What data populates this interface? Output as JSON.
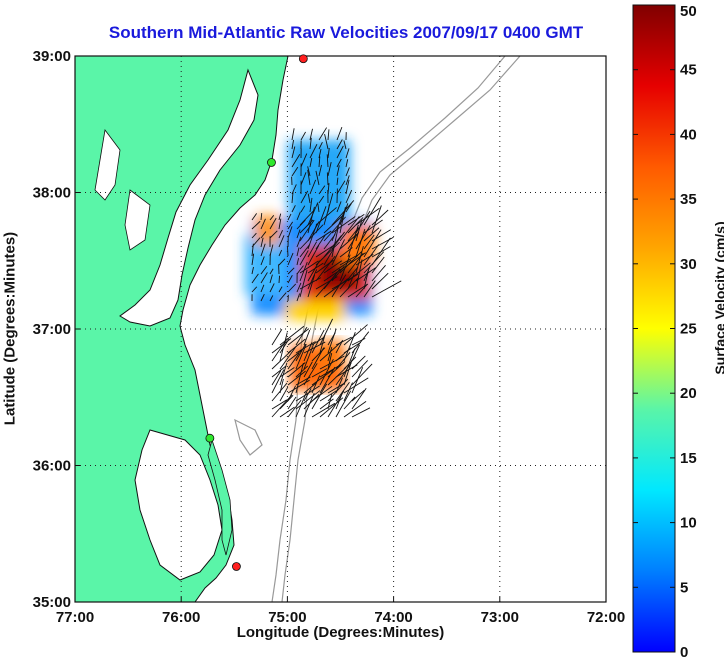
{
  "map": {
    "title": "Southern Mid-Atlantic Raw Velocities 2007/09/17 0400 GMT",
    "x_axis_label": "Longitude (Degrees:Minutes)",
    "y_axis_label": "Latitude (Degrees:Minutes)",
    "x_ticks": [
      {
        "value": -77,
        "label": "77:00"
      },
      {
        "value": -76,
        "label": "76:00"
      },
      {
        "value": -75,
        "label": "75:00"
      },
      {
        "value": -74,
        "label": "74:00"
      },
      {
        "value": -73,
        "label": "73:00"
      },
      {
        "value": -72,
        "label": "72:00"
      }
    ],
    "y_ticks": [
      {
        "value": 39,
        "label": "39:00"
      },
      {
        "value": 38,
        "label": "38:00"
      },
      {
        "value": 37,
        "label": "37:00"
      },
      {
        "value": 36,
        "label": "36:00"
      },
      {
        "value": 35,
        "label": "35:00"
      }
    ],
    "lon_range": [
      -77,
      -72
    ],
    "lat_range": [
      35,
      39
    ],
    "grid": true,
    "colors": {
      "land": "#5af5a8",
      "coast": "#111111",
      "bathymetry": "#999999",
      "title": "#1a1adc"
    }
  },
  "colorbar": {
    "label": "Surface Velocity (cm/s)",
    "min": 0,
    "max": 50,
    "ticks": [
      {
        "value": 0,
        "label": "0"
      },
      {
        "value": 5,
        "label": "5"
      },
      {
        "value": 10,
        "label": "10"
      },
      {
        "value": 15,
        "label": "15"
      },
      {
        "value": 20,
        "label": "20"
      },
      {
        "value": 25,
        "label": "25"
      },
      {
        "value": 30,
        "label": "30"
      },
      {
        "value": 35,
        "label": "35"
      },
      {
        "value": 40,
        "label": "40"
      },
      {
        "value": 45,
        "label": "45"
      },
      {
        "value": 50,
        "label": "50"
      }
    ]
  },
  "stations": [
    {
      "lon": -74.85,
      "lat": 38.98,
      "color": "#ff2020"
    },
    {
      "lon": -75.15,
      "lat": 38.22,
      "color": "#2ee82e"
    },
    {
      "lon": -75.73,
      "lat": 36.2,
      "color": "#2ee82e"
    },
    {
      "lon": -75.48,
      "lat": 35.26,
      "color": "#ff2020"
    }
  ]
}
